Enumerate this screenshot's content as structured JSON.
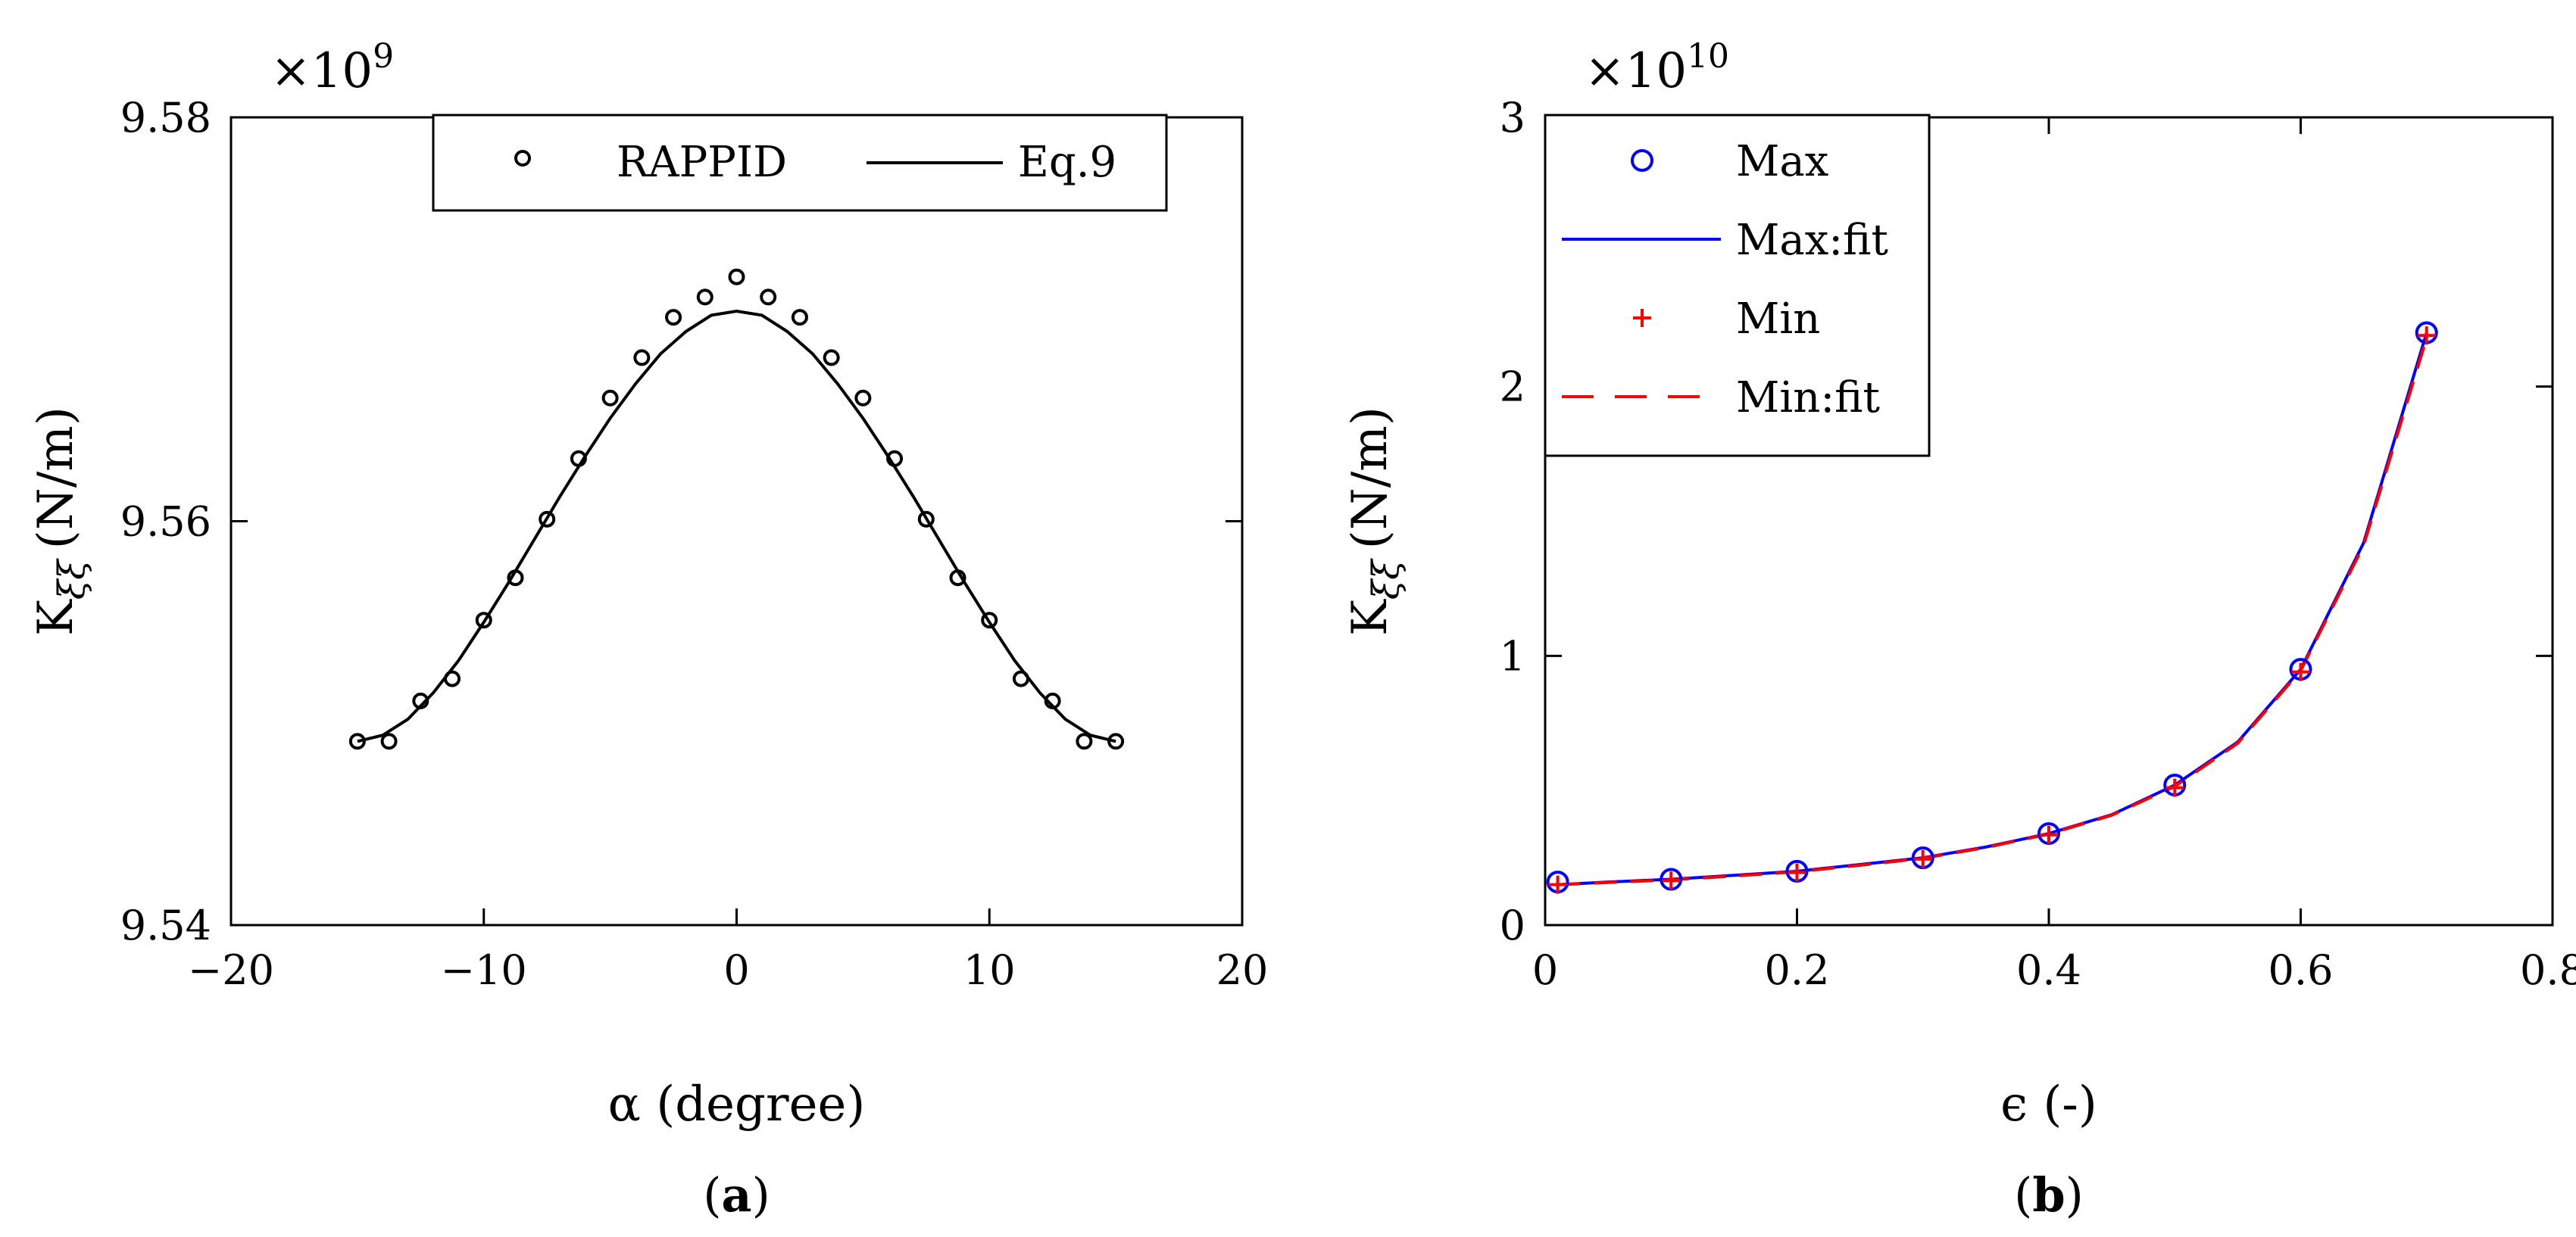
{
  "chart_data": [
    {
      "type": "scatter",
      "panel_label": "a",
      "title": "",
      "xlabel": "α (degree)",
      "ylabel_main": "K",
      "ylabel_sub": "ξξ",
      "ylabel_unit": "(N/m)",
      "exponent_base": "×10",
      "exponent": "9",
      "xlim": [
        -20,
        20
      ],
      "ylim": [
        9.54,
        9.58
      ],
      "xticks": [
        -20,
        -10,
        0,
        10,
        20
      ],
      "xtick_labels": [
        "−20",
        "−10",
        "0",
        "10",
        "20"
      ],
      "yticks": [
        9.54,
        9.56,
        9.58
      ],
      "ytick_labels": [
        "9.54",
        "9.56",
        "9.58"
      ],
      "legend_position": "top-center",
      "series": [
        {
          "name": "RAPPID",
          "marker": "circle",
          "color": "#000000",
          "x": [
            -15,
            -13.75,
            -12.5,
            -11.25,
            -10,
            -8.75,
            -7.5,
            -6.25,
            -5,
            -3.75,
            -2.5,
            -1.25,
            0,
            1.25,
            2.5,
            3.75,
            5,
            6.25,
            7.5,
            8.75,
            10,
            11.25,
            12.5,
            13.75,
            15
          ],
          "y": [
            9.5491,
            9.5491,
            9.5511,
            9.5522,
            9.5551,
            9.5572,
            9.5601,
            9.5631,
            9.5661,
            9.5681,
            9.5701,
            9.5711,
            9.5721,
            9.5711,
            9.5701,
            9.5681,
            9.5661,
            9.5631,
            9.5601,
            9.5572,
            9.5551,
            9.5522,
            9.5511,
            9.5491,
            9.5491
          ]
        },
        {
          "name": "Eq.9",
          "line": "solid",
          "color": "#000000",
          "x": [
            -15,
            -14,
            -13,
            -12,
            -11,
            -10,
            -9,
            -8,
            -7,
            -6,
            -5,
            -4,
            -3,
            -2,
            -1,
            0,
            1,
            2,
            3,
            4,
            5,
            6,
            7,
            8,
            9,
            10,
            11,
            12,
            13,
            14,
            15
          ],
          "y": [
            9.5491,
            9.5494,
            9.5502,
            9.5515,
            9.5531,
            9.555,
            9.557,
            9.5591,
            9.5612,
            9.5632,
            9.5651,
            9.5668,
            9.5683,
            9.5694,
            9.5702,
            9.5704,
            9.5702,
            9.5694,
            9.5683,
            9.5668,
            9.5651,
            9.5632,
            9.5612,
            9.5591,
            9.557,
            9.555,
            9.5531,
            9.5515,
            9.5502,
            9.5494,
            9.5491
          ]
        }
      ]
    },
    {
      "type": "scatter",
      "panel_label": "b",
      "title": "",
      "xlabel": "ϵ (-)",
      "ylabel_main": "K",
      "ylabel_sub": "ξξ",
      "ylabel_unit": "(N/m)",
      "exponent_base": "×10",
      "exponent": "10",
      "xlim": [
        0,
        0.8
      ],
      "ylim": [
        0,
        3
      ],
      "xticks": [
        0,
        0.2,
        0.4,
        0.6,
        0.8
      ],
      "xtick_labels": [
        "0",
        "0.2",
        "0.4",
        "0.6",
        "0.8"
      ],
      "yticks": [
        0,
        1,
        2,
        3
      ],
      "ytick_labels": [
        "0",
        "1",
        "2",
        "3"
      ],
      "legend_position": "top-left",
      "series": [
        {
          "name": "Max",
          "marker": "circle",
          "color": "#0000ff",
          "x": [
            0.01,
            0.1,
            0.2,
            0.3,
            0.4,
            0.5,
            0.6,
            0.7
          ],
          "y": [
            0.16,
            0.17,
            0.2,
            0.25,
            0.34,
            0.52,
            0.95,
            2.2
          ]
        },
        {
          "name": "Max:fit",
          "line": "solid",
          "color": "#0000ff",
          "x": [
            0.01,
            0.05,
            0.1,
            0.15,
            0.2,
            0.25,
            0.3,
            0.35,
            0.4,
            0.45,
            0.5,
            0.55,
            0.6,
            0.65,
            0.7
          ],
          "y": [
            0.15,
            0.16,
            0.17,
            0.185,
            0.2,
            0.225,
            0.25,
            0.29,
            0.34,
            0.41,
            0.52,
            0.68,
            0.95,
            1.42,
            2.2
          ]
        },
        {
          "name": "Min",
          "marker": "plus",
          "color": "#ff0000",
          "x": [
            0.01,
            0.1,
            0.2,
            0.3,
            0.4,
            0.5,
            0.6,
            0.7
          ],
          "y": [
            0.15,
            0.165,
            0.195,
            0.245,
            0.335,
            0.51,
            0.94,
            2.19
          ]
        },
        {
          "name": "Min:fit",
          "line": "dashed",
          "color": "#ff0000",
          "x": [
            0.01,
            0.05,
            0.1,
            0.15,
            0.2,
            0.25,
            0.3,
            0.35,
            0.4,
            0.45,
            0.5,
            0.55,
            0.6,
            0.65,
            0.7
          ],
          "y": [
            0.15,
            0.158,
            0.168,
            0.182,
            0.198,
            0.222,
            0.248,
            0.288,
            0.338,
            0.408,
            0.515,
            0.675,
            0.945,
            1.41,
            2.18
          ]
        }
      ]
    }
  ]
}
